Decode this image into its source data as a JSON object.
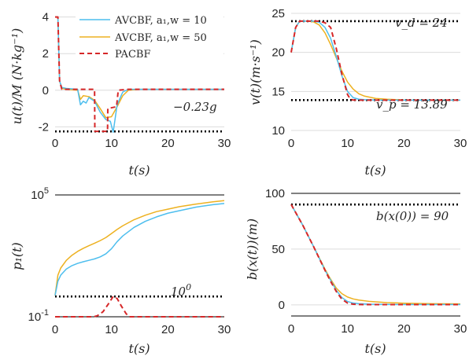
{
  "colors": {
    "blue": "#4DBEEE",
    "orange": "#EDB120",
    "red": "#D62728",
    "black": "#000000",
    "grid": "#dcdcdc"
  },
  "chart_data": [
    {
      "id": "u",
      "type": "line",
      "xlabel": "t(s)",
      "ylabel": "u(t)/M (N·kg⁻¹)",
      "xlim": [
        0,
        30
      ],
      "ylim": [
        -2.2,
        4.2
      ],
      "xticks": [
        0,
        10,
        20,
        30
      ],
      "yticks": [
        4,
        2,
        0,
        -2
      ],
      "legend": {
        "placement": "top-right",
        "entries": [
          "AVCBF, a₁,w = 10",
          "AVCBF, a₁,w = 50",
          "PACBF"
        ]
      },
      "reference_lines": [
        {
          "y": -2.25,
          "label": "−0.23g"
        }
      ],
      "series": [
        {
          "name": "AVCBF, a₁,w = 10",
          "color": "blue",
          "style": "solid",
          "x": [
            0,
            0.5,
            0.8,
            1.2,
            2,
            4,
            4.5,
            5,
            5.5,
            6,
            7,
            8,
            9,
            9.8,
            10.3,
            11,
            12,
            13,
            15,
            20,
            30
          ],
          "y": [
            4,
            4,
            0.5,
            0.15,
            0.1,
            0.05,
            -0.8,
            -0.6,
            -0.7,
            -0.4,
            -0.6,
            -1.2,
            -1.6,
            -1.7,
            -2.3,
            -0.8,
            -0.1,
            0.05,
            0.05,
            0.05,
            0.05
          ]
        },
        {
          "name": "AVCBF, a₁,w = 50",
          "color": "orange",
          "style": "solid",
          "x": [
            0,
            0.5,
            0.8,
            1.2,
            2,
            4,
            4.5,
            5,
            6,
            7,
            8,
            9,
            10,
            11,
            12,
            13,
            15,
            20,
            30
          ],
          "y": [
            4,
            4,
            0.5,
            0.1,
            0.05,
            0.0,
            -0.5,
            -0.3,
            -0.35,
            -0.55,
            -1.0,
            -1.5,
            -1.45,
            -0.9,
            -0.3,
            0.0,
            0.05,
            0.05,
            0.05
          ]
        },
        {
          "name": "PACBF",
          "color": "red",
          "style": "dashed",
          "x": [
            0,
            0.5,
            0.8,
            1.2,
            2,
            7.0,
            7.05,
            9.3,
            9.35,
            10.9,
            11.2,
            13,
            30
          ],
          "y": [
            4,
            4,
            0.5,
            0.05,
            0.05,
            0.05,
            -2.25,
            -2.25,
            -1.0,
            -0.9,
            0.0,
            0.05,
            0.05
          ]
        }
      ]
    },
    {
      "id": "v",
      "type": "line",
      "xlabel": "t(s)",
      "ylabel": "v(t)(m·s⁻¹)",
      "xlim": [
        0,
        30
      ],
      "ylim": [
        10,
        25
      ],
      "xticks": [
        0,
        10,
        20,
        30
      ],
      "yticks": [
        10,
        15,
        20,
        25
      ],
      "reference_lines": [
        {
          "y": 24,
          "label": "v_d = 24"
        },
        {
          "y": 13.89,
          "label": "v_p = 13.89"
        }
      ],
      "series": [
        {
          "name": "AVCBF, a₁,w = 10",
          "color": "blue",
          "style": "solid",
          "x": [
            0,
            0.8,
            1.5,
            2,
            3,
            4,
            5,
            6,
            7,
            8,
            9,
            10,
            11,
            12,
            13,
            15,
            20,
            30
          ],
          "y": [
            20,
            23.2,
            24,
            24,
            24,
            24,
            23.85,
            23.2,
            21.8,
            19.5,
            17.0,
            15.0,
            14.2,
            14.0,
            13.95,
            13.9,
            13.89,
            13.89
          ]
        },
        {
          "name": "AVCBF, a₁,w = 50",
          "color": "orange",
          "style": "solid",
          "x": [
            0,
            0.8,
            1.5,
            2,
            3,
            4,
            5,
            6,
            7,
            8,
            9,
            10,
            11,
            12,
            13,
            15,
            17,
            20,
            30
          ],
          "y": [
            20,
            23.2,
            24,
            24,
            24,
            23.9,
            23.5,
            22.5,
            21.0,
            19.3,
            17.6,
            16.2,
            15.3,
            14.7,
            14.4,
            14.1,
            14.0,
            13.9,
            13.89
          ]
        },
        {
          "name": "PACBF",
          "color": "red",
          "style": "dashed",
          "x": [
            0,
            0.8,
            1.5,
            2,
            3,
            5,
            6,
            7,
            8,
            9,
            10,
            10.5,
            11,
            12,
            30
          ],
          "y": [
            20,
            23.2,
            24,
            24,
            24,
            24,
            23.8,
            23.2,
            20.5,
            17.2,
            14.6,
            14.0,
            13.9,
            13.89,
            13.89
          ]
        }
      ]
    },
    {
      "id": "p",
      "type": "line",
      "xlabel": "t(s)",
      "ylabel": "p₁(t)",
      "xlim": [
        0,
        30
      ],
      "ylim_log10": [
        -1,
        5
      ],
      "yscale": "log",
      "xticks": [
        0,
        10,
        20,
        30
      ],
      "yticks": [
        {
          "label": "10",
          "exp": "5",
          "value": 100000
        },
        {
          "label": "10",
          "exp": "-1",
          "value": 0.1
        }
      ],
      "reference_lines": [
        {
          "y": 1,
          "label": "10",
          "exp": "0"
        },
        {
          "y": 100000,
          "label": ""
        },
        {
          "y": 0.1,
          "label": ""
        }
      ],
      "series": [
        {
          "name": "AVCBF, a₁,w = 10",
          "color": "blue",
          "style": "solid",
          "x": [
            0,
            0.5,
            1,
            2,
            3,
            4,
            5,
            6,
            7,
            8,
            9,
            10,
            11,
            12,
            14,
            16,
            18,
            20,
            22,
            25,
            28,
            30
          ],
          "y_log10": [
            0.05,
            0.75,
            1.05,
            1.35,
            1.52,
            1.63,
            1.71,
            1.78,
            1.85,
            1.95,
            2.1,
            2.35,
            2.7,
            2.98,
            3.4,
            3.7,
            3.92,
            4.1,
            4.22,
            4.4,
            4.52,
            4.58
          ]
        },
        {
          "name": "AVCBF, a₁,w = 50",
          "color": "orange",
          "style": "solid",
          "x": [
            0,
            0.5,
            1,
            2,
            3,
            4,
            5,
            6,
            7,
            8,
            9,
            10,
            11,
            12,
            14,
            16,
            18,
            20,
            22,
            25,
            28,
            30
          ],
          "y_log10": [
            0.05,
            1.05,
            1.4,
            1.78,
            2.03,
            2.22,
            2.37,
            2.5,
            2.62,
            2.75,
            2.9,
            3.1,
            3.3,
            3.48,
            3.78,
            4.0,
            4.18,
            4.3,
            4.42,
            4.55,
            4.66,
            4.72
          ]
        },
        {
          "name": "PACBF",
          "color": "red",
          "style": "dashed",
          "x": [
            0,
            6.8,
            7.5,
            8.5,
            9.5,
            10.3,
            11,
            11.7,
            12.6,
            13.2,
            30
          ],
          "y_log10": [
            -1,
            -1,
            -0.95,
            -0.75,
            -0.35,
            0.0,
            -0.1,
            -0.45,
            -0.85,
            -1,
            -1
          ]
        }
      ]
    },
    {
      "id": "b",
      "type": "line",
      "xlabel": "t(s)",
      "ylabel": "b(x(t))(m)",
      "xlim": [
        0,
        30
      ],
      "ylim": [
        -10,
        100
      ],
      "xticks": [
        0,
        10,
        20,
        30
      ],
      "yticks": [
        0,
        50,
        100
      ],
      "reference_lines": [
        {
          "y": 90,
          "label": "b(x(0)) = 90"
        },
        {
          "y": 100,
          "label": ""
        },
        {
          "y": -10,
          "label": ""
        }
      ],
      "series": [
        {
          "name": "AVCBF, a₁,w = 10",
          "color": "blue",
          "style": "solid",
          "x": [
            0,
            2,
            4,
            6,
            7,
            8,
            9,
            10,
            11,
            12,
            14,
            17,
            20,
            30
          ],
          "y": [
            90,
            72,
            52,
            31,
            22,
            13,
            6.5,
            3,
            1.6,
            1.0,
            0.6,
            0.4,
            0.3,
            0.3
          ]
        },
        {
          "name": "AVCBF, a₁,w = 50",
          "color": "orange",
          "style": "solid",
          "x": [
            0,
            2,
            4,
            6,
            7,
            8,
            9,
            10,
            11,
            12,
            14,
            17,
            20,
            25,
            30
          ],
          "y": [
            90,
            72,
            52,
            32,
            23,
            15,
            10,
            7,
            5.3,
            4.3,
            3.0,
            2.0,
            1.5,
            1.0,
            0.8
          ]
        },
        {
          "name": "PACBF",
          "color": "red",
          "style": "dashed",
          "x": [
            0,
            2,
            4,
            6,
            7,
            8,
            9,
            10,
            11,
            12,
            14,
            20,
            30
          ],
          "y": [
            90,
            72,
            52,
            31,
            21,
            12,
            5,
            1.6,
            0.6,
            0.3,
            0.2,
            0.2,
            0.2
          ]
        }
      ]
    }
  ]
}
